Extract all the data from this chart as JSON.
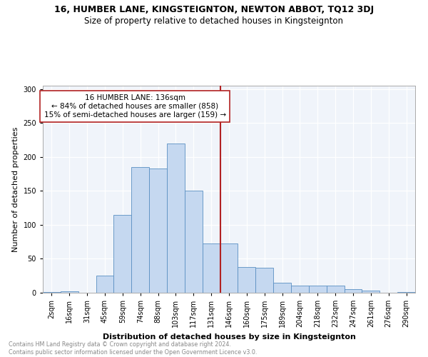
{
  "title": "16, HUMBER LANE, KINGSTEIGNTON, NEWTON ABBOT, TQ12 3DJ",
  "subtitle": "Size of property relative to detached houses in Kingsteignton",
  "xlabel": "Distribution of detached houses by size in Kingsteignton",
  "ylabel": "Number of detached properties",
  "footnote": "Contains HM Land Registry data © Crown copyright and database right 2024.\nContains public sector information licensed under the Open Government Licence v3.0.",
  "bar_labels": [
    "2sqm",
    "16sqm",
    "31sqm",
    "45sqm",
    "59sqm",
    "74sqm",
    "88sqm",
    "103sqm",
    "117sqm",
    "131sqm",
    "146sqm",
    "160sqm",
    "175sqm",
    "189sqm",
    "204sqm",
    "218sqm",
    "232sqm",
    "247sqm",
    "261sqm",
    "276sqm",
    "290sqm"
  ],
  "bar_heights": [
    1,
    2,
    0,
    25,
    115,
    185,
    183,
    220,
    150,
    73,
    73,
    38,
    37,
    15,
    10,
    10,
    10,
    5,
    3,
    0,
    1
  ],
  "bar_color": "#c5d8f0",
  "bar_edge_color": "#5a8fc2",
  "vline_color": "#b22222",
  "annotation_title": "16 HUMBER LANE: 136sqm",
  "annotation_line1": "← 84% of detached houses are smaller (858)",
  "annotation_line2": "15% of semi-detached houses are larger (159) →",
  "annotation_box_color": "#b22222",
  "ylim": [
    0,
    305
  ],
  "yticks": [
    0,
    50,
    100,
    150,
    200,
    250,
    300
  ],
  "title_fontsize": 9,
  "subtitle_fontsize": 8.5,
  "annotation_fontsize": 7.5,
  "axis_label_fontsize": 8,
  "tick_fontsize": 7
}
